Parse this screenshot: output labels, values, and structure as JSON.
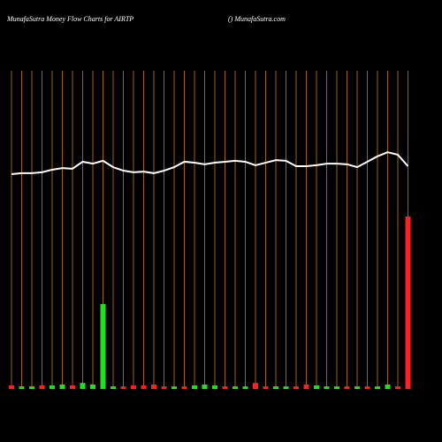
{
  "chart_data": {
    "type": "money-flow",
    "title": "MunafaSutra  Money Flow  Charts for AIRTP",
    "subtitle": "() MunafaSutra.com",
    "ylim": [
      0,
      100
    ],
    "grid_color": "#c87a1e",
    "line_color": "#ffffff",
    "line": [
      67.5,
      67.8,
      67.8,
      68.1,
      68.9,
      69.4,
      69.2,
      71.4,
      70.8,
      71.7,
      69.7,
      68.6,
      68.1,
      68.3,
      67.8,
      68.6,
      69.7,
      71.4,
      71.1,
      70.6,
      71.1,
      71.4,
      71.7,
      71.4,
      70.3,
      71.1,
      71.9,
      71.7,
      70,
      70,
      70.3,
      70.8,
      70.8,
      70.6,
      69.7,
      71.4,
      73.1,
      74.4,
      73.6,
      70
    ],
    "bars": [
      1.1,
      0.8,
      0.8,
      1.1,
      1.1,
      1.4,
      1.1,
      1.9,
      1.4,
      26.7,
      0.8,
      0.8,
      1.1,
      1.1,
      1.4,
      0.8,
      0.8,
      0.8,
      1.1,
      1.4,
      1.1,
      0.8,
      0.8,
      0.8,
      1.9,
      0.8,
      0.8,
      0.8,
      0.8,
      1.4,
      1.1,
      0.8,
      0.8,
      0.8,
      0.8,
      0.8,
      0.8,
      1.4,
      0.8,
      54.2
    ],
    "bar_colors": [
      "#ff2020",
      "#20e020",
      "#20e020",
      "#ff2020",
      "#20e020",
      "#20e020",
      "#ff2020",
      "#20e020",
      "#20e020",
      "#20e020",
      "#20e020",
      "#ff2020",
      "#ff2020",
      "#ff2020",
      "#ff2020",
      "#ff2020",
      "#20e020",
      "#ff2020",
      "#20e020",
      "#20e020",
      "#20e020",
      "#ff2020",
      "#20e020",
      "#20e020",
      "#ff2020",
      "#ff2020",
      "#20e020",
      "#20e020",
      "#ff2020",
      "#ff2020",
      "#20e020",
      "#20e020",
      "#20e020",
      "#ff2020",
      "#20e020",
      "#ff2020",
      "#20e020",
      "#20e020",
      "#ff2020",
      "#ff2020"
    ]
  }
}
